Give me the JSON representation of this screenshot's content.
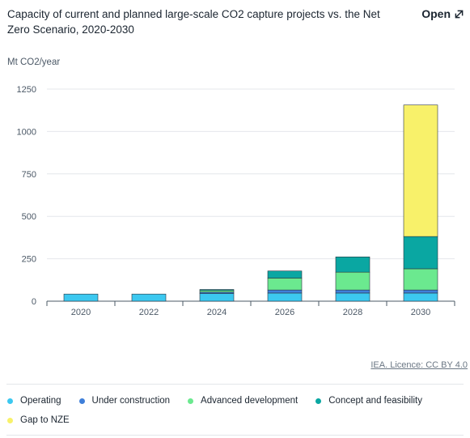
{
  "header": {
    "title": "Capacity of current and planned large-scale CO2 capture projects vs. the Net Zero Scenario, 2020-2030",
    "open_label": "Open"
  },
  "credit": "IEA. Licence: CC BY 4.0",
  "chart_data": {
    "type": "bar",
    "stacked": true,
    "ylabel": "Mt CO2/year",
    "ylim": [
      0,
      1250
    ],
    "yticks": [
      0,
      250,
      500,
      750,
      1000,
      1250
    ],
    "grid": true,
    "legend_position": "bottom",
    "categories": [
      "2020",
      "2022",
      "2024",
      "2026",
      "2028",
      "2030"
    ],
    "series": [
      {
        "name": "Operating",
        "color": "#3cc8f0",
        "values": [
          42,
          42,
          45,
          48,
          48,
          48
        ]
      },
      {
        "name": "Under construction",
        "color": "#3f7fd9",
        "values": [
          0,
          0,
          8,
          18,
          18,
          18
        ]
      },
      {
        "name": "Advanced development",
        "color": "#6be98f",
        "values": [
          0,
          0,
          10,
          70,
          105,
          125
        ]
      },
      {
        "name": "Concept and feasibility",
        "color": "#0aa7a2",
        "values": [
          0,
          0,
          6,
          42,
          90,
          190
        ]
      },
      {
        "name": "Gap to NZE",
        "color": "#f8f16a",
        "values": [
          0,
          0,
          0,
          0,
          0,
          775
        ]
      }
    ]
  }
}
